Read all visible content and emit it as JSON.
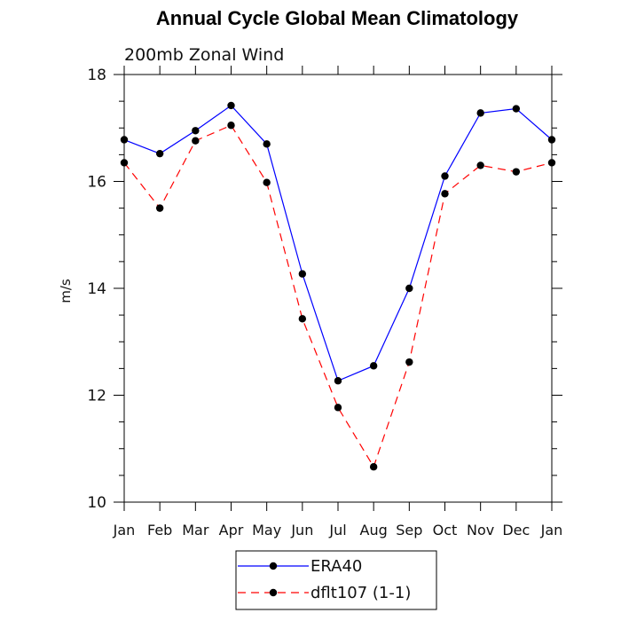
{
  "chart_data": {
    "type": "line",
    "title": "Annual Cycle Global Mean Climatology",
    "subtitle": "200mb Zonal Wind",
    "xlabel": "",
    "ylabel": "m/s",
    "categories": [
      "Jan",
      "Feb",
      "Mar",
      "Apr",
      "May",
      "Jun",
      "Jul",
      "Aug",
      "Sep",
      "Oct",
      "Nov",
      "Dec",
      "Jan"
    ],
    "ylim": [
      10,
      18
    ],
    "yticks": [
      10,
      12,
      14,
      16,
      18
    ],
    "legend_position": "bottom-center",
    "series": [
      {
        "name": "ERA40",
        "color": "#0000ff",
        "line_style": "solid",
        "marker": "filled-circle",
        "values": [
          16.78,
          16.52,
          16.95,
          17.42,
          16.7,
          14.27,
          12.27,
          12.55,
          14.0,
          16.1,
          17.28,
          17.36,
          16.78
        ]
      },
      {
        "name": "dflt107 (1-1)",
        "color": "#ff0000",
        "line_style": "dashed",
        "marker": "filled-circle",
        "values": [
          16.35,
          15.5,
          16.76,
          17.05,
          15.98,
          13.43,
          11.77,
          10.66,
          12.62,
          15.77,
          16.3,
          16.18,
          16.35
        ]
      }
    ]
  }
}
